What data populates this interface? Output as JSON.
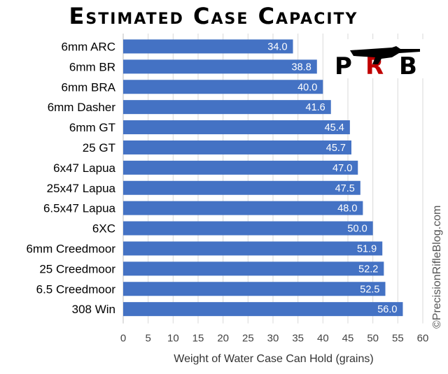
{
  "chart_data": {
    "type": "bar",
    "orientation": "horizontal",
    "title": "Estimated Case Capacity",
    "categories": [
      "6mm ARC",
      "6mm BR",
      "6mm BRA",
      "6mm Dasher",
      "6mm GT",
      "25 GT",
      "6x47 Lapua",
      "25x47 Lapua",
      "6.5x47 Lapua",
      "6XC",
      "6mm Creedmoor",
      "25 Creedmoor",
      "6.5 Creedmoor",
      "308 Win"
    ],
    "values": [
      34.0,
      38.8,
      40.0,
      41.6,
      45.4,
      45.7,
      47.0,
      47.5,
      48.0,
      50.0,
      51.9,
      52.2,
      52.5,
      56.0
    ],
    "value_labels": [
      "34.0",
      "38.8",
      "40.0",
      "41.6",
      "45.4",
      "45.7",
      "47.0",
      "47.5",
      "48.0",
      "50.0",
      "51.9",
      "52.2",
      "52.5",
      "56.0"
    ],
    "xlabel": "Weight of Water Case Can Hold (grains)",
    "ylabel": "",
    "xlim": [
      0,
      60
    ],
    "xticks": [
      "0",
      "5",
      "10",
      "15",
      "20",
      "25",
      "30",
      "35",
      "40",
      "45",
      "50",
      "55",
      "60"
    ],
    "grid": "vertical",
    "bar_color": "#4472C4"
  },
  "watermark": "©PrecisionRifleBlog.com",
  "logo": {
    "text": "PRB",
    "accent": "#c00000"
  }
}
